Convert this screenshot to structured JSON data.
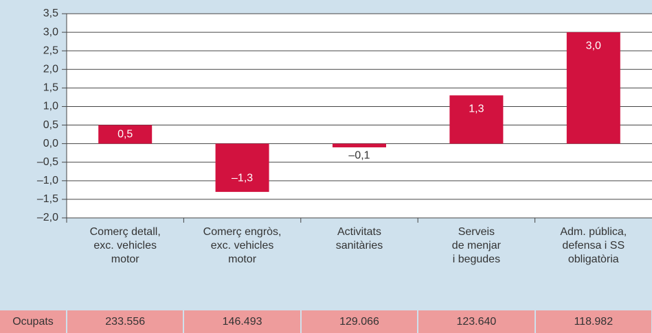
{
  "chart_data": {
    "type": "bar",
    "categories": [
      "Comerç detall,\nexc. vehicles\nmotor",
      "Comerç engròs,\nexc. vehicles\nmotor",
      "Activitats\nsanitàries",
      "Serveis\nde menjar\ni begudes",
      "Adm. pública,\ndefensa i SS\nobligatòria"
    ],
    "values": [
      0.5,
      -1.3,
      -0.1,
      1.3,
      3.0
    ],
    "value_labels": [
      "0,5",
      "–1,3",
      "–0,1",
      "1,3",
      "3,0"
    ],
    "color": "#d2123f",
    "ylim": [
      -2.0,
      3.5
    ],
    "yticks": [
      {
        "value": -2.0,
        "label": "–2,0"
      },
      {
        "value": -1.5,
        "label": "–1,5"
      },
      {
        "value": -1.0,
        "label": "–1,0"
      },
      {
        "value": -0.5,
        "label": "–0,5"
      },
      {
        "value": 0.0,
        "label": "0,0"
      },
      {
        "value": 0.5,
        "label": "0,5"
      },
      {
        "value": 1.0,
        "label": "1,0"
      },
      {
        "value": 1.5,
        "label": "1,5"
      },
      {
        "value": 2.0,
        "label": "2,0"
      },
      {
        "value": 2.5,
        "label": "2,5"
      },
      {
        "value": 3.0,
        "label": "3,0"
      },
      {
        "value": 3.5,
        "label": "3,5"
      }
    ],
    "grid": true
  },
  "table": {
    "header": "Ocupats",
    "values": [
      "233.556",
      "146.493",
      "129.066",
      "123.640",
      "118.982"
    ]
  }
}
